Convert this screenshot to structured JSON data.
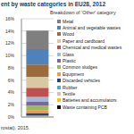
{
  "chart_data": {
    "type": "bar",
    "title": "ent by waste categories in EU28, 2012",
    "subtitle": "Breakdown of 'Other' category",
    "annotations": [
      "rostat), 2015."
    ],
    "categories": [
      null
    ],
    "series": [
      {
        "name": "Metal",
        "color": "#7f7f7f",
        "values": [
          3.0
        ]
      },
      {
        "name": "Animal and vegetable wastes",
        "color": "#4f81bd",
        "values": [
          2.5
        ]
      },
      {
        "name": "Wood",
        "color": "#9c6b3c",
        "values": [
          2.0
        ]
      },
      {
        "name": "Paper and cardboard",
        "color": "#d9c9a3",
        "values": [
          1.8
        ]
      },
      {
        "name": "Chemical and medical wastes",
        "color": "#c0504d",
        "values": [
          1.5
        ]
      },
      {
        "name": "Glass",
        "color": "#9bbbd9",
        "values": [
          0.8
        ]
      },
      {
        "name": "Plastic",
        "color": "#8064a2",
        "values": [
          0.6
        ]
      },
      {
        "name": "Common sludges",
        "color": "#9bbb59",
        "values": [
          0.8
        ]
      },
      {
        "name": "Equipment",
        "color": "#f79646",
        "values": [
          0.4
        ]
      },
      {
        "name": "Discarded vehicles",
        "color": "#1f497d",
        "values": [
          0.4
        ]
      },
      {
        "name": "Rubber",
        "color": "#4bacc6",
        "values": [
          0.1
        ]
      },
      {
        "name": "Textile",
        "color": "#e6b9b8",
        "values": [
          0.1
        ]
      },
      {
        "name": "Batteries and accumulators",
        "color": "#ffc000",
        "values": [
          0.05
        ]
      },
      {
        "name": "Waste containing PCB",
        "color": "#000000",
        "values": [
          0.01
        ]
      }
    ],
    "ylim": [
      0,
      16
    ],
    "yticks": [
      {
        "value": 0,
        "label": "0%"
      },
      {
        "value": 2,
        "label": "2%"
      },
      {
        "value": 4,
        "label": "4%"
      },
      {
        "value": 6,
        "label": "6%"
      },
      {
        "value": 8,
        "label": "8%"
      },
      {
        "value": 10,
        "label": "10%"
      },
      {
        "value": 12,
        "label": "12%"
      },
      {
        "value": 14,
        "label": "14%"
      },
      {
        "value": 16,
        "label": "16%"
      }
    ],
    "stacked": true,
    "grid": true,
    "legend": "right",
    "tick_labels": "y"
  }
}
